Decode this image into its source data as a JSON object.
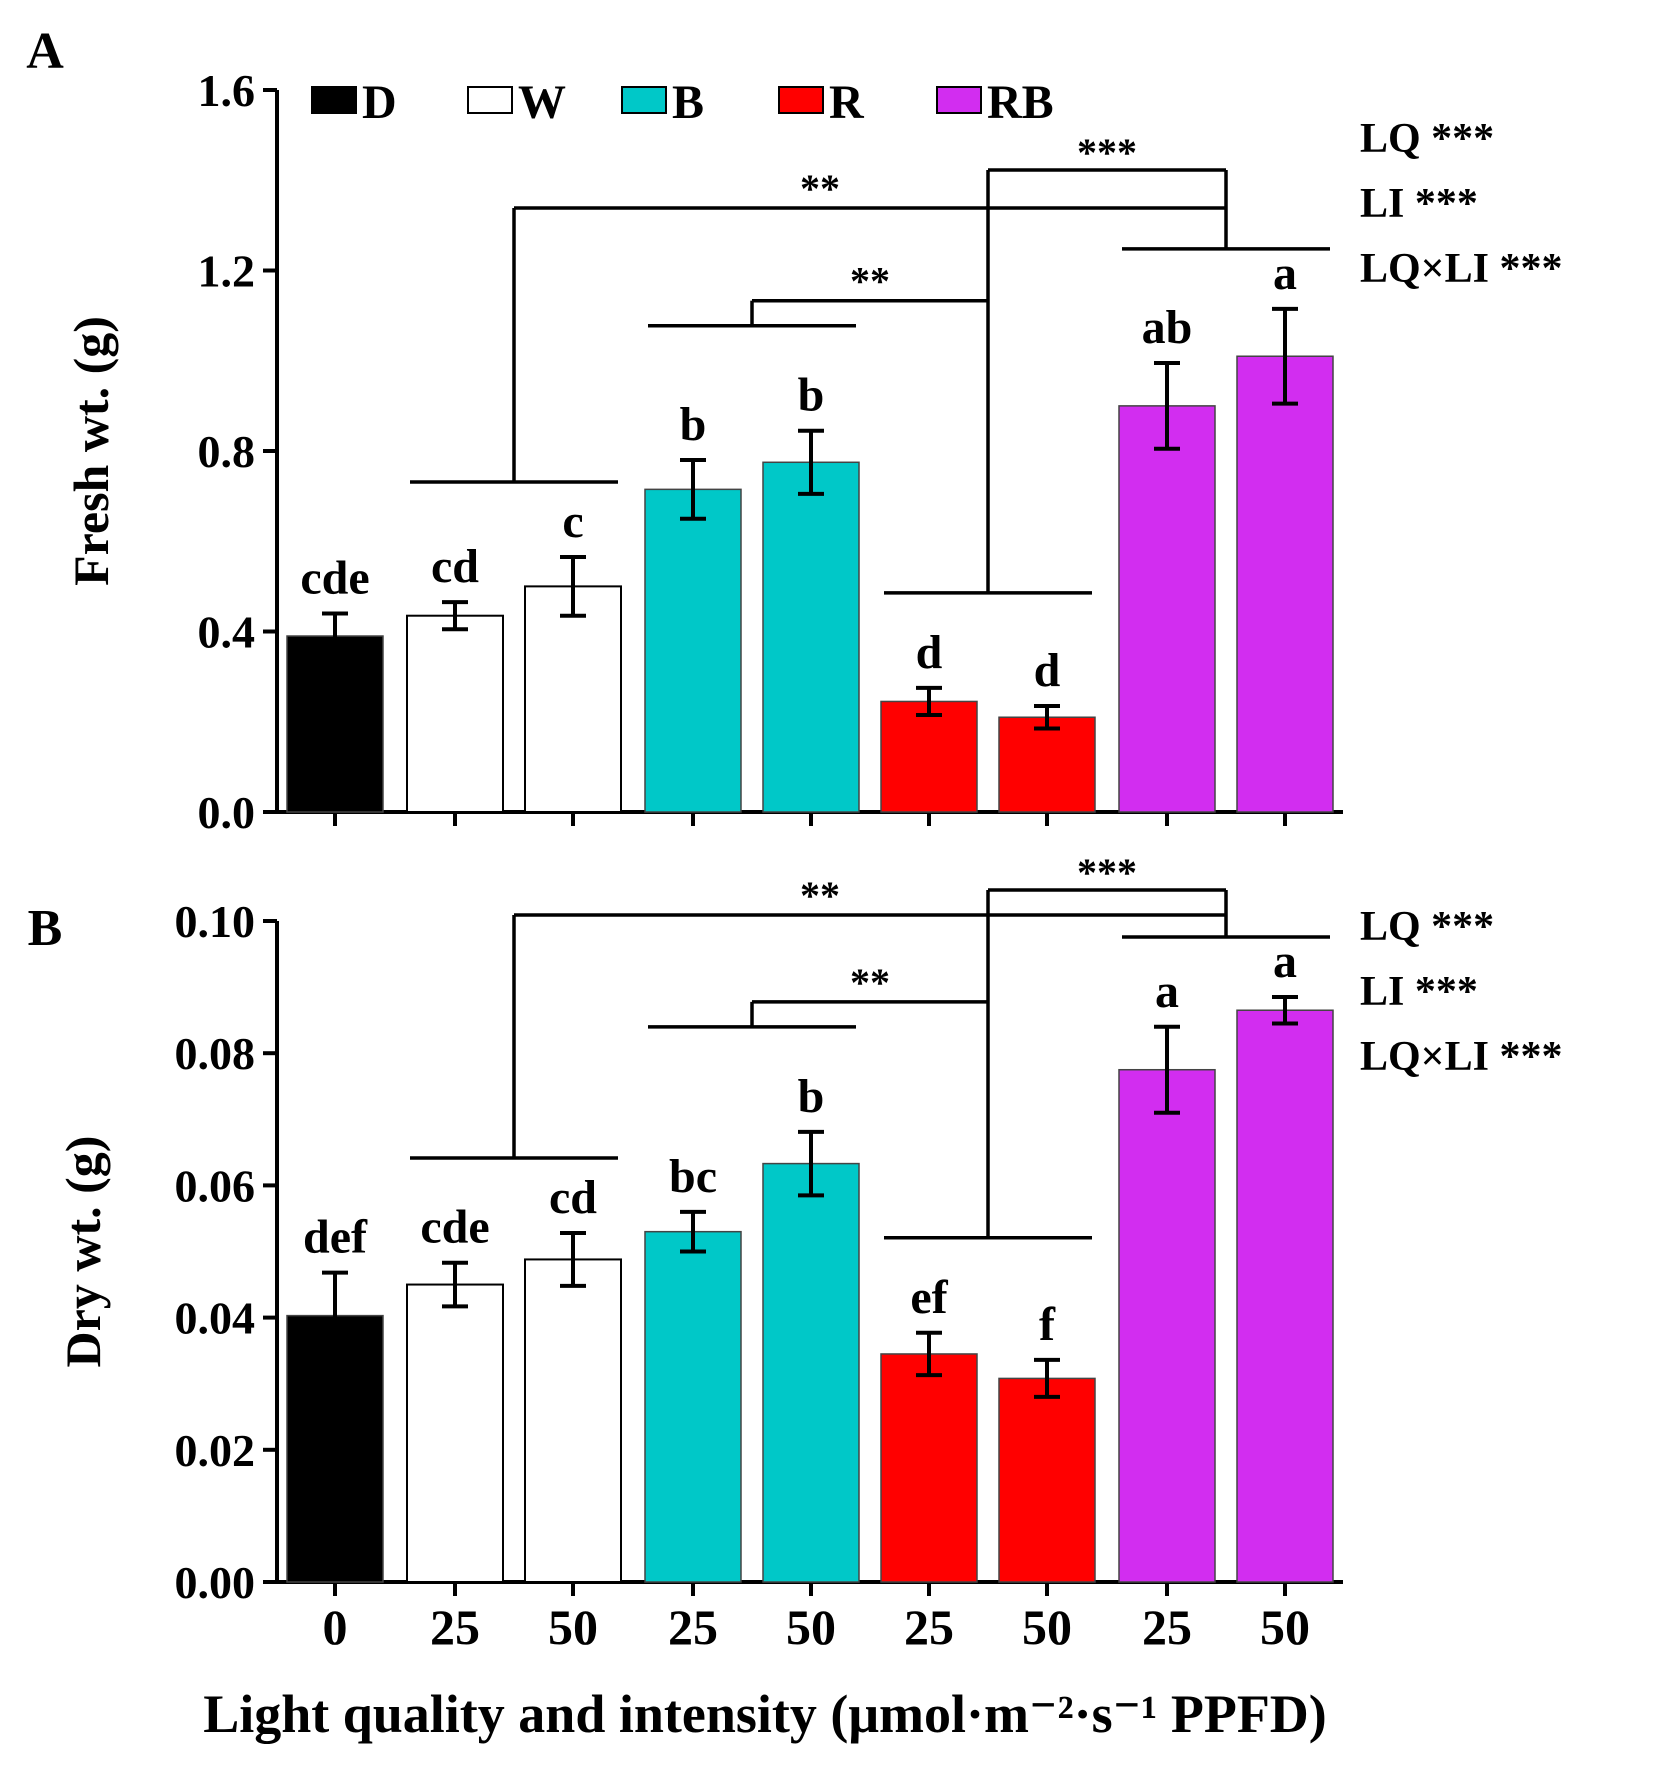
{
  "chart_data": [
    {
      "type": "bar",
      "panel_label": "A",
      "ylabel": "Fresh wt. (g)",
      "ylim": [
        0,
        1.6
      ],
      "yticks": [
        "0.0",
        "0.4",
        "0.8",
        "1.2",
        "1.6"
      ],
      "ytick_values": [
        0,
        0.4,
        0.8,
        1.2,
        1.6
      ],
      "values": [
        0.39,
        0.435,
        0.5,
        0.715,
        0.775,
        0.245,
        0.21,
        0.9,
        1.01
      ],
      "errors": [
        0.05,
        0.03,
        0.065,
        0.065,
        0.07,
        0.03,
        0.025,
        0.095,
        0.105
      ],
      "letters": [
        "cde",
        "cd",
        "c",
        "b",
        "b",
        "d",
        "d",
        "ab",
        "a"
      ],
      "stats": [
        "LQ ***",
        "LI ***",
        "LQ×LI ***"
      ],
      "brackets": [
        {
          "label": "***",
          "from": "R",
          "to": "RB"
        },
        {
          "label": "**",
          "from": "W",
          "to": "RB"
        },
        {
          "label": "**",
          "from": "B",
          "to": "R"
        }
      ]
    },
    {
      "type": "bar",
      "panel_label": "B",
      "ylabel": "Dry wt. (g)",
      "ylim": [
        0,
        0.1
      ],
      "yticks": [
        "0.00",
        "0.02",
        "0.04",
        "0.06",
        "0.08",
        "0.10"
      ],
      "ytick_values": [
        0,
        0.02,
        0.04,
        0.06,
        0.08,
        0.1
      ],
      "values": [
        0.0403,
        0.045,
        0.0488,
        0.053,
        0.0633,
        0.0345,
        0.0308,
        0.0775,
        0.0865
      ],
      "errors": [
        0.0065,
        0.0033,
        0.004,
        0.003,
        0.0048,
        0.0032,
        0.0028,
        0.0065,
        0.002
      ],
      "letters": [
        "def",
        "cde",
        "cd",
        "bc",
        "b",
        "ef",
        "f",
        "a",
        "a"
      ],
      "stats": [
        "LQ ***",
        "LI ***",
        "LQ×LI ***"
      ],
      "brackets": [
        {
          "label": "***",
          "from": "R",
          "to": "RB"
        },
        {
          "label": "**",
          "from": "W",
          "to": "RB"
        },
        {
          "label": "**",
          "from": "B",
          "to": "R"
        }
      ]
    }
  ],
  "categories": [
    "0",
    "25",
    "50",
    "25",
    "50",
    "25",
    "50",
    "25",
    "50"
  ],
  "bar_groups": [
    "D",
    "W",
    "W",
    "B",
    "B",
    "R",
    "R",
    "RB",
    "RB"
  ],
  "legend": [
    {
      "label": "D",
      "color": "#000000"
    },
    {
      "label": "W",
      "color": "#ffffff"
    },
    {
      "label": "B",
      "color": "#00c8c8"
    },
    {
      "label": "R",
      "color": "#ff0000"
    },
    {
      "label": "RB",
      "color": "#d22df0"
    }
  ],
  "xlabel": "Light quality and intensity (μmol·m⁻²·s⁻¹ PPFD)"
}
